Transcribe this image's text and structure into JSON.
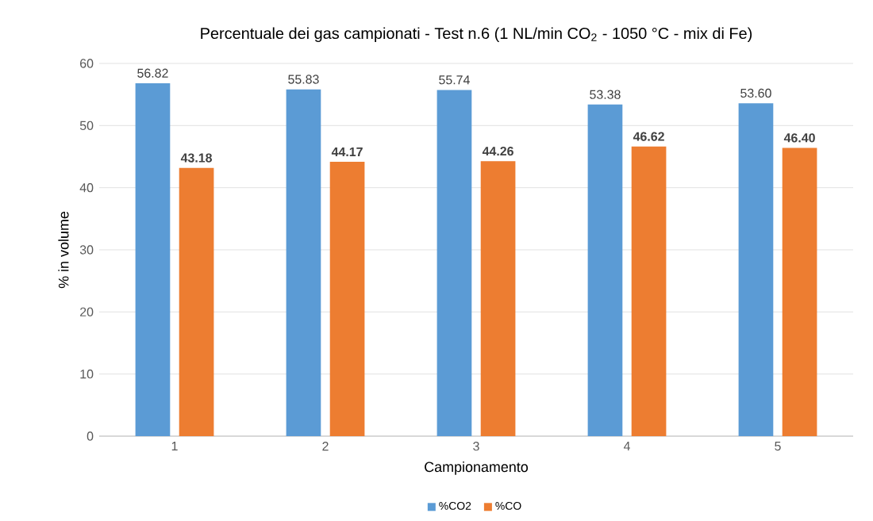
{
  "chart_data": {
    "type": "bar",
    "title": "Percentuale dei gas campionati - Test n.6 (1 NL/min CO$_{2}$ - 1050 °C - mix di Fe)",
    "xlabel": "Campionamento",
    "ylabel": "% in volume",
    "categories": [
      "1",
      "2",
      "3",
      "4",
      "5"
    ],
    "series": [
      {
        "name": "%CO2",
        "color": "#5b9bd5",
        "values": [
          56.82,
          55.83,
          55.74,
          53.38,
          53.6
        ],
        "value_labels": [
          "56.82",
          "55.83",
          "55.74",
          "53.38",
          "53.60"
        ]
      },
      {
        "name": "%CO",
        "color": "#ed7d31",
        "values": [
          43.18,
          44.17,
          44.26,
          46.62,
          46.4
        ],
        "value_labels": [
          "43.18",
          "44.17",
          "44.26",
          "46.62",
          "46.40"
        ]
      }
    ],
    "ylim": [
      0,
      60
    ],
    "yticks": [
      0,
      10,
      20,
      30,
      40,
      50,
      60
    ],
    "grid": "y",
    "legend": "bottom"
  }
}
